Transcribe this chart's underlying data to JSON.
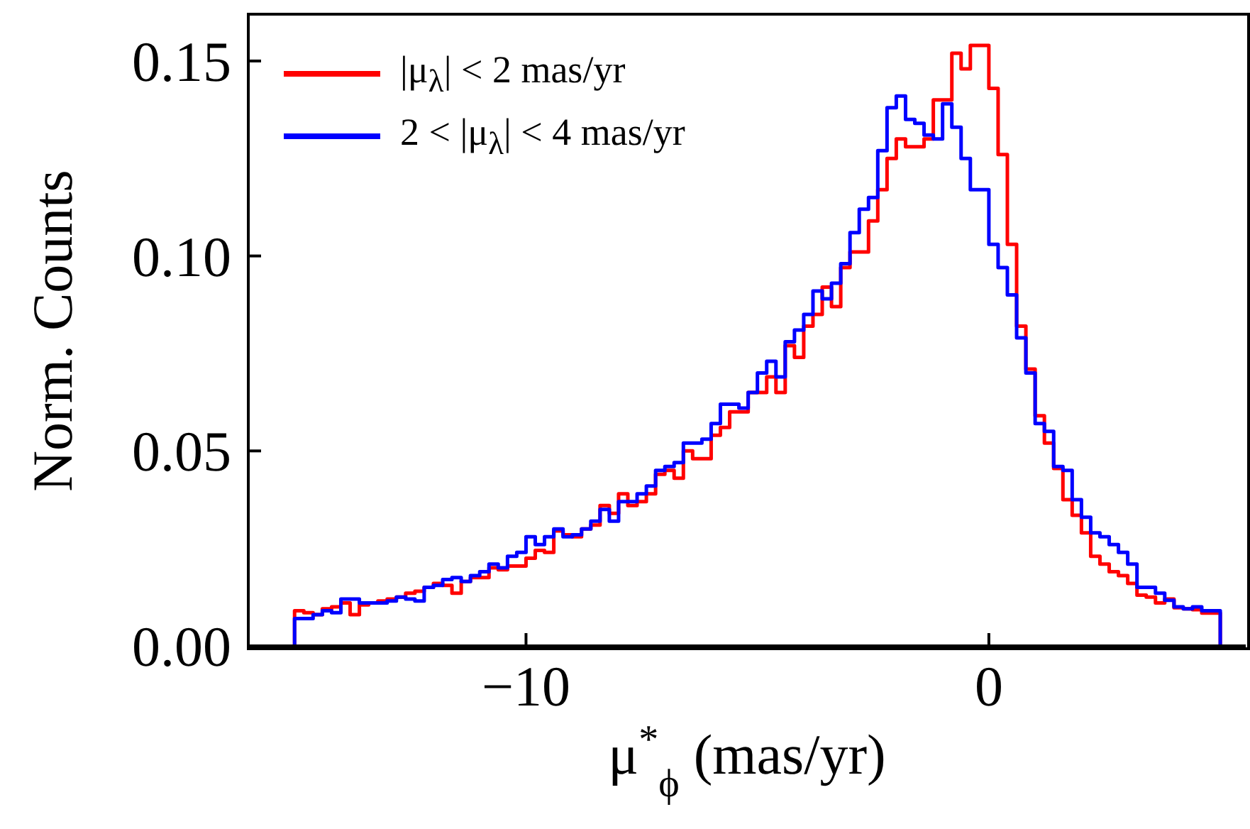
{
  "chart_data": {
    "type": "histogram",
    "xlabel": "μ$^{*}$$_{ϕ}$ (mas/yr)",
    "ylabel": "Norm. Counts",
    "bins": [
      -15,
      -14.8,
      -14.6,
      -14.4,
      -14.2,
      -14,
      -13.8,
      -13.6,
      -13.4,
      -13.2,
      -13,
      -12.8,
      -12.6,
      -12.4,
      -12.2,
      -12,
      -11.8,
      -11.6,
      -11.4,
      -11.2,
      -11,
      -10.8,
      -10.6,
      -10.4,
      -10.2,
      -10,
      -9.8,
      -9.6,
      -9.4,
      -9.2,
      -9,
      -8.8,
      -8.6,
      -8.4,
      -8.2,
      -8,
      -7.8,
      -7.6,
      -7.4,
      -7.2,
      -7,
      -6.8,
      -6.6,
      -6.4,
      -6.2,
      -6,
      -5.8,
      -5.6,
      -5.4,
      -5.2,
      -5,
      -4.8,
      -4.6,
      -4.4,
      -4.2,
      -4,
      -3.8,
      -3.6,
      -3.4,
      -3.2,
      -3,
      -2.8,
      -2.6,
      -2.4,
      -2.2,
      -2,
      -1.8,
      -1.6,
      -1.4,
      -1.2,
      -1,
      -0.8,
      -0.6,
      -0.4,
      -0.2,
      0,
      0.2,
      0.4,
      0.6,
      0.8,
      1,
      1.2,
      1.4,
      1.6,
      1.8,
      2,
      2.2,
      2.4,
      2.6,
      2.8,
      3,
      3.2,
      3.4,
      3.6,
      3.8,
      4,
      4.2,
      4.4,
      4.6,
      4.8,
      5
    ],
    "series": [
      {
        "name": "|μ$_{λ}$| < 2 mas/yr",
        "color": "#ff0000",
        "values": [
          0.009,
          0.0085,
          0.008,
          0.0095,
          0.01,
          0.011,
          0.008,
          0.0105,
          0.011,
          0.0115,
          0.012,
          0.0125,
          0.0135,
          0.014,
          0.015,
          0.016,
          0.0155,
          0.0135,
          0.0165,
          0.0175,
          0.0175,
          0.02,
          0.0195,
          0.0205,
          0.0205,
          0.0225,
          0.0245,
          0.024,
          0.0295,
          0.0285,
          0.028,
          0.03,
          0.031,
          0.036,
          0.034,
          0.039,
          0.036,
          0.037,
          0.039,
          0.044,
          0.045,
          0.043,
          0.05,
          0.048,
          0.048,
          0.054,
          0.056,
          0.06,
          0.06,
          0.065,
          0.065,
          0.069,
          0.065,
          0.077,
          0.074,
          0.082,
          0.085,
          0.092,
          0.087,
          0.097,
          0.101,
          0.101,
          0.109,
          0.117,
          0.125,
          0.13,
          0.128,
          0.128,
          0.13,
          0.14,
          0.14,
          0.152,
          0.148,
          0.154,
          0.154,
          0.143,
          0.126,
          0.103,
          0.082,
          0.071,
          0.059,
          0.052,
          0.0455,
          0.0375,
          0.0335,
          0.029,
          0.023,
          0.021,
          0.019,
          0.018,
          0.016,
          0.013,
          0.0125,
          0.011,
          0.012,
          0.0098,
          0.0095,
          0.0093,
          0.0084,
          0.0084
        ]
      },
      {
        "name": "2 < |μ$_{λ}$| < 4 mas/yr",
        "color": "#0000ff",
        "values": [
          0.007,
          0.007,
          0.008,
          0.009,
          0.0085,
          0.012,
          0.012,
          0.011,
          0.011,
          0.011,
          0.0115,
          0.0125,
          0.012,
          0.0115,
          0.015,
          0.0155,
          0.017,
          0.0175,
          0.0165,
          0.018,
          0.019,
          0.021,
          0.02,
          0.023,
          0.024,
          0.028,
          0.026,
          0.028,
          0.03,
          0.028,
          0.0285,
          0.03,
          0.032,
          0.035,
          0.032,
          0.037,
          0.037,
          0.039,
          0.041,
          0.045,
          0.046,
          0.047,
          0.052,
          0.052,
          0.053,
          0.057,
          0.062,
          0.062,
          0.061,
          0.065,
          0.07,
          0.073,
          0.069,
          0.078,
          0.081,
          0.085,
          0.091,
          0.089,
          0.093,
          0.098,
          0.106,
          0.112,
          0.115,
          0.127,
          0.138,
          0.141,
          0.135,
          0.134,
          0.131,
          0.13,
          0.139,
          0.133,
          0.125,
          0.117,
          0.117,
          0.103,
          0.097,
          0.09,
          0.079,
          0.07,
          0.057,
          0.055,
          0.046,
          0.045,
          0.0375,
          0.033,
          0.029,
          0.028,
          0.026,
          0.024,
          0.021,
          0.015,
          0.015,
          0.0135,
          0.0117,
          0.01,
          0.0095,
          0.01,
          0.009,
          0.009
        ]
      }
    ],
    "xlim": [
      -16,
      5.55
    ],
    "xticks": [
      {
        "value": -10,
        "label": "−10"
      },
      0
    ],
    "ylim": [
      0,
      0.162
    ],
    "yticks": [
      {
        "value": 0,
        "label": "0.00"
      },
      0.05,
      {
        "value": 0.1,
        "label": "0.10"
      },
      {
        "value": 0.15,
        "label": "0.15"
      }
    ],
    "legend": "top left",
    "marker": "none",
    "grid": false
  }
}
